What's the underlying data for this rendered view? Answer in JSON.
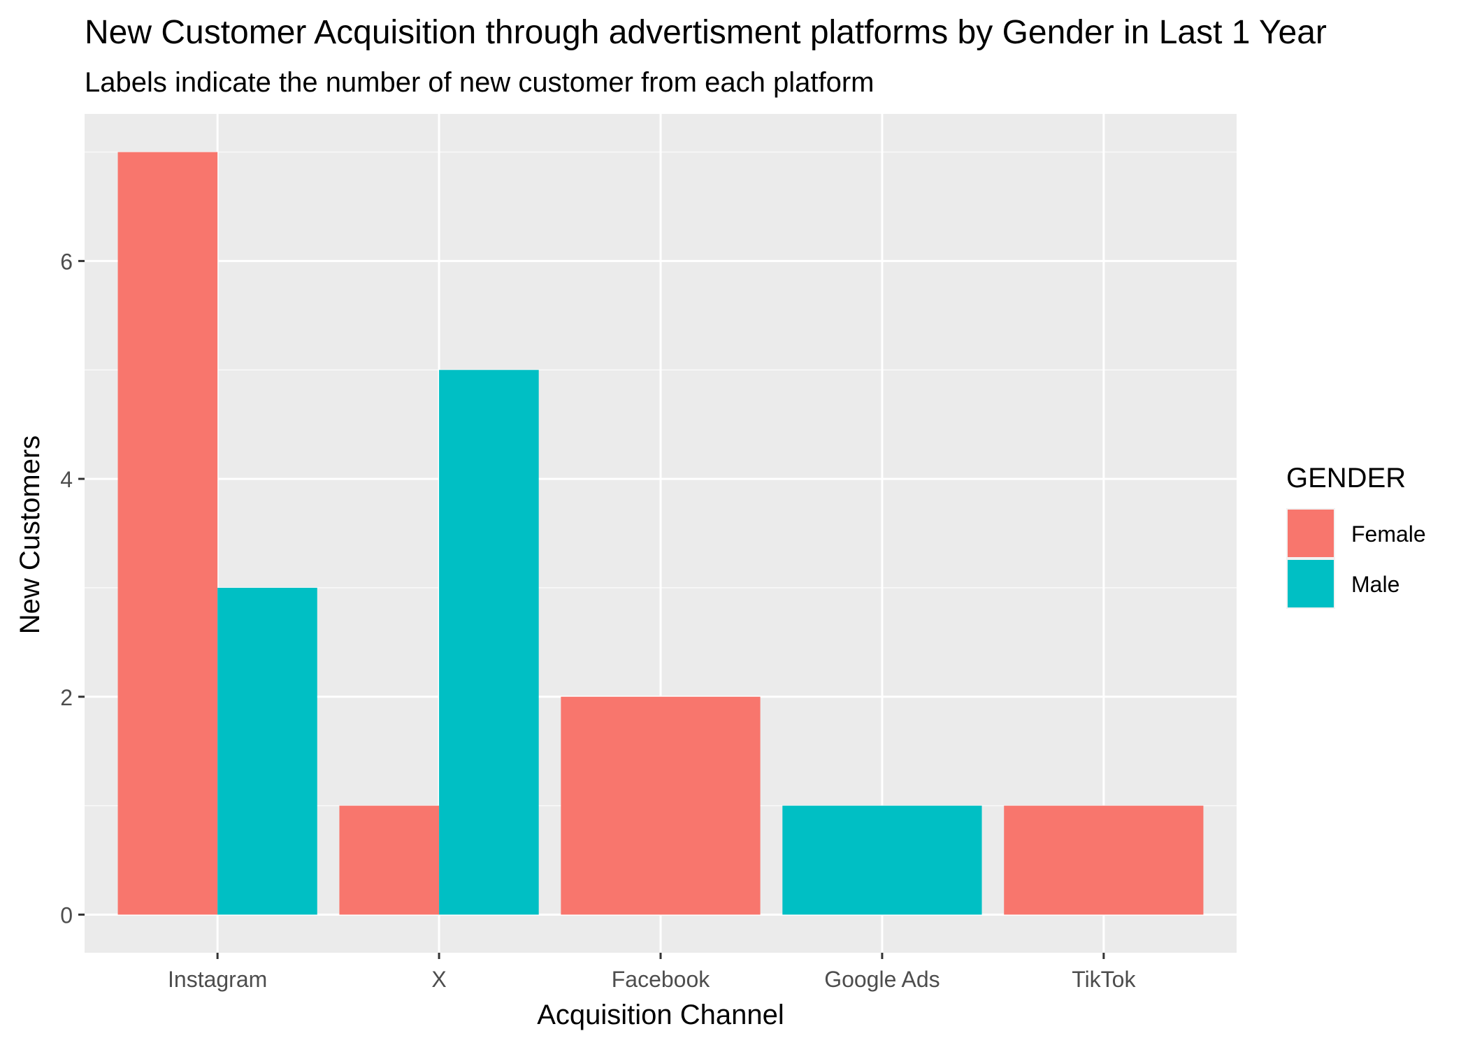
{
  "chart_data": {
    "type": "bar",
    "title": "New Customer Acquisition through advertisment platforms by Gender in Last 1 Year",
    "subtitle": "Labels indicate the number of new customer from each platform",
    "xlabel": "Acquisition Channel",
    "ylabel": "New Customers",
    "categories": [
      "Instagram",
      "X",
      "Facebook",
      "Google Ads",
      "TikTok"
    ],
    "series": [
      {
        "name": "Female",
        "color": "#F8766D",
        "values": [
          7,
          1,
          2,
          null,
          1
        ]
      },
      {
        "name": "Male",
        "color": "#00BFC4",
        "values": [
          3,
          5,
          null,
          1,
          null
        ]
      }
    ],
    "ylim": [
      -0.35,
      7.35
    ],
    "yticks": [
      0,
      2,
      4,
      6
    ],
    "grid": true,
    "legend": {
      "title": "GENDER",
      "position": "right",
      "items": [
        "Female",
        "Male"
      ]
    },
    "colors": {
      "panel_background": "#EBEBEB",
      "grid_major": "#FFFFFF",
      "grid_minor": "#F5F5F5",
      "tick_text": "#4D4D4D",
      "text": "#000000"
    }
  }
}
